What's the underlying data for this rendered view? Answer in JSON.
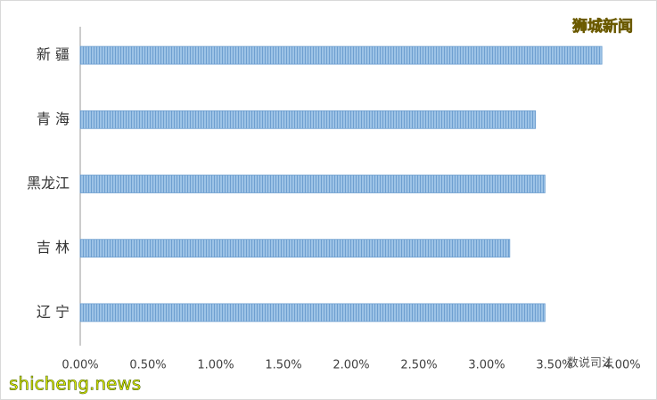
{
  "chart_data": {
    "type": "barh",
    "categories": [
      "新 疆",
      "青 海",
      "黑龙江",
      "吉 林",
      "辽 宁"
    ],
    "values": [
      3.85,
      3.36,
      3.43,
      3.17,
      3.43
    ],
    "color": "#9dc3e6",
    "xlim": [
      0,
      4
    ],
    "xticks": [
      {
        "value": 0,
        "label": "0.00%"
      },
      {
        "value": 0.5,
        "label": "0.50%"
      },
      {
        "value": 1,
        "label": "1.00%"
      },
      {
        "value": 1.5,
        "label": "1.50%"
      },
      {
        "value": 2,
        "label": "2.00%"
      },
      {
        "value": 2.5,
        "label": "2.50%"
      },
      {
        "value": 3,
        "label": "3.00%"
      },
      {
        "value": 3.5,
        "label": "3.50%"
      },
      {
        "value": 4,
        "label": "4.00%"
      }
    ],
    "grid": false,
    "annotations": [
      "狮城新闻",
      "数说司法",
      "shicheng.news"
    ]
  }
}
